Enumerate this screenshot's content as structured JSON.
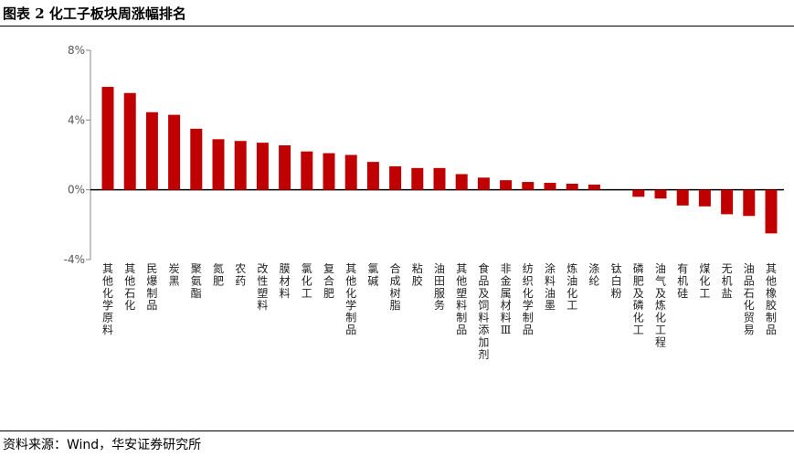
{
  "header": {
    "title": "图表 2 化工子板块周涨幅排名"
  },
  "footer": {
    "source": "资料来源：Wind，华安证券研究所"
  },
  "chart_data": {
    "type": "bar",
    "title": "",
    "xlabel": "",
    "ylabel": "",
    "ylim": [
      -4,
      8
    ],
    "yticks": [
      -4,
      0,
      4,
      8
    ],
    "ytick_labels": [
      "-4%",
      "0%",
      "4%",
      "8%"
    ],
    "grid": false,
    "bar_color": "#C00000",
    "categories": [
      "其他化学原料",
      "其他石化",
      "民爆制品",
      "炭黑",
      "聚氨酯",
      "氮肥",
      "农药",
      "改性塑料",
      "膜材料",
      "氯化工",
      "复合肥",
      "其他化学制品",
      "氯碱",
      "合成树脂",
      "粘胶",
      "油田服务",
      "其他塑料制品",
      "食品及饲料添加剂",
      "非金属材料Ⅲ",
      "纺织化学制品",
      "涂料油墨",
      "炼油化工",
      "涤纶",
      "钛白粉",
      "磷肥及磷化工",
      "油气及炼化工程",
      "有机硅",
      "煤化工",
      "无机盐",
      "油品石化贸易",
      "其他橡胶制品"
    ],
    "values": [
      5.9,
      5.55,
      4.45,
      4.3,
      3.5,
      2.9,
      2.8,
      2.7,
      2.55,
      2.2,
      2.1,
      2.0,
      1.6,
      1.35,
      1.25,
      1.25,
      0.9,
      0.7,
      0.55,
      0.45,
      0.4,
      0.35,
      0.3,
      0.0,
      -0.4,
      -0.5,
      -0.9,
      -0.95,
      -1.4,
      -1.5,
      -2.5
    ]
  }
}
